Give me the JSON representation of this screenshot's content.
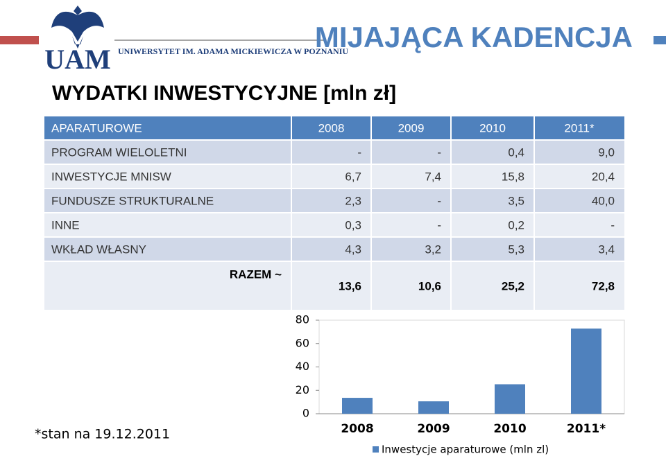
{
  "header": {
    "logo_text": "UAM",
    "university": "Uniwersytet im. Adama Mickiewicza w Poznaniu",
    "title": "MIJAJĄCA KADENCJA"
  },
  "heading": "WYDATKI INWESTYCYJNE [mln zł]",
  "table": {
    "header": [
      "APARATUROWE",
      "2008",
      "2009",
      "2010",
      "2011*"
    ],
    "rows": [
      [
        "PROGRAM WIELOLETNI",
        "-",
        "-",
        "0,4",
        "9,0"
      ],
      [
        "INWESTYCJE MNISW",
        "6,7",
        "7,4",
        "15,8",
        "20,4"
      ],
      [
        "FUNDUSZE STRUKTURALNE",
        "2,3",
        "-",
        "3,5",
        "40,0"
      ],
      [
        "INNE",
        "0,3",
        "-",
        "0,2",
        "-"
      ],
      [
        "WKŁAD WŁASNY",
        "4,3",
        "3,2",
        "5,3",
        "3,4"
      ]
    ],
    "total": [
      "RAZEM ~",
      "13,6",
      "10,6",
      "25,2",
      "72,8"
    ]
  },
  "footnote": "*stan na 19.12.2011",
  "chart_data": {
    "type": "bar",
    "categories": [
      "2008",
      "2009",
      "2010",
      "2011*"
    ],
    "values": [
      13.6,
      10.6,
      25.2,
      72.8
    ],
    "color": "#4f81bd",
    "ylim": [
      0,
      80
    ],
    "yticks": [
      0,
      20,
      40,
      60,
      80
    ],
    "legend": "Inwestycje aparaturowe (mln zl)",
    "legend_position": "bottom"
  }
}
